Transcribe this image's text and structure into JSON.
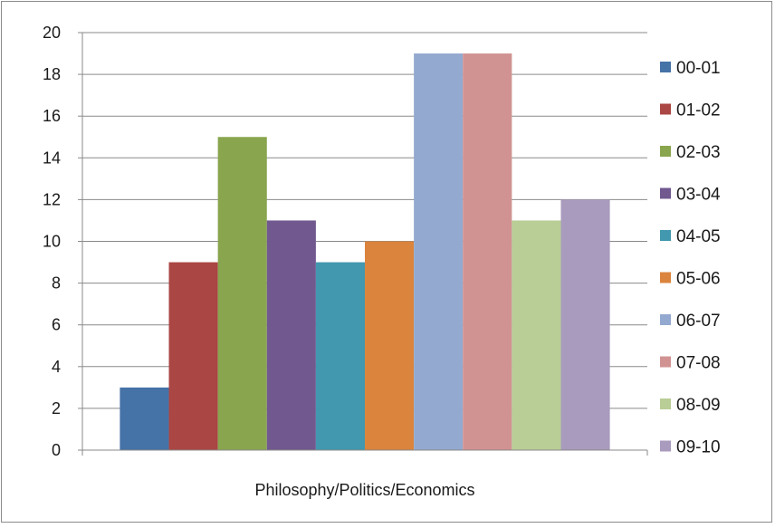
{
  "chart_data": {
    "type": "bar",
    "title": "",
    "xlabel": "",
    "ylabel": "",
    "categories": [
      "Philosophy/Politics/Economics"
    ],
    "ylim": [
      0,
      20
    ],
    "yticks": [
      0,
      2,
      4,
      6,
      8,
      10,
      12,
      14,
      16,
      18,
      20
    ],
    "grid": true,
    "legend_position": "right",
    "series": [
      {
        "name": "00-01",
        "values": [
          3
        ],
        "color": "#4572a7"
      },
      {
        "name": "01-02",
        "values": [
          9
        ],
        "color": "#aa4643"
      },
      {
        "name": "02-03",
        "values": [
          15
        ],
        "color": "#89a54e"
      },
      {
        "name": "03-04",
        "values": [
          11
        ],
        "color": "#71588f"
      },
      {
        "name": "04-05",
        "values": [
          9
        ],
        "color": "#4198af"
      },
      {
        "name": "05-06",
        "values": [
          10
        ],
        "color": "#db843d"
      },
      {
        "name": "06-07",
        "values": [
          19
        ],
        "color": "#93a9cf"
      },
      {
        "name": "07-08",
        "values": [
          19
        ],
        "color": "#d19392"
      },
      {
        "name": "08-09",
        "values": [
          11
        ],
        "color": "#b9cd96"
      },
      {
        "name": "09-10",
        "values": [
          12
        ],
        "color": "#a99bbd"
      }
    ]
  }
}
